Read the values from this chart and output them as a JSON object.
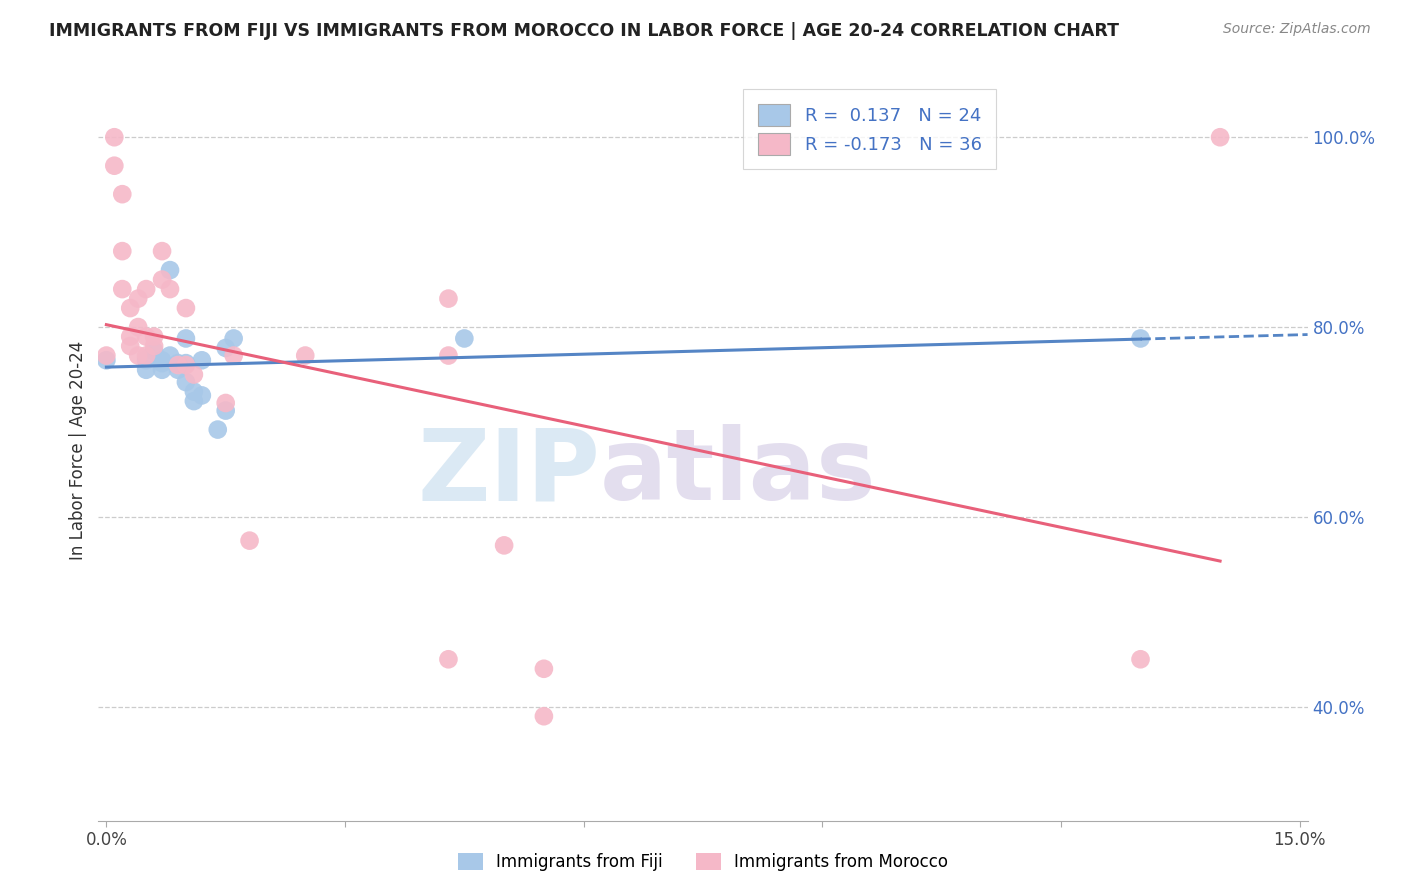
{
  "title": "IMMIGRANTS FROM FIJI VS IMMIGRANTS FROM MOROCCO IN LABOR FORCE | AGE 20-24 CORRELATION CHART",
  "source": "Source: ZipAtlas.com",
  "ylabel": "In Labor Force | Age 20-24",
  "xlim": [
    -0.001,
    0.151
  ],
  "ylim": [
    0.28,
    1.06
  ],
  "xticks": [
    0.0,
    0.03,
    0.06,
    0.09,
    0.12,
    0.15
  ],
  "xticklabels": [
    "0.0%",
    "",
    "",
    "",
    "",
    "15.0%"
  ],
  "yticks_right": [
    0.4,
    0.6,
    0.8,
    1.0
  ],
  "yticklabels_right": [
    "40.0%",
    "60.0%",
    "80.0%",
    "100.0%"
  ],
  "fiji_color": "#a8c8e8",
  "morocco_color": "#f5b8c8",
  "fiji_line_color": "#5585c5",
  "morocco_line_color": "#e8607a",
  "fiji_r": 0.137,
  "fiji_n": 24,
  "morocco_r": -0.173,
  "morocco_n": 36,
  "fiji_x": [
    0.0,
    0.005,
    0.005,
    0.006,
    0.007,
    0.007,
    0.007,
    0.008,
    0.008,
    0.009,
    0.009,
    0.01,
    0.01,
    0.01,
    0.011,
    0.011,
    0.012,
    0.012,
    0.014,
    0.015,
    0.015,
    0.016,
    0.045,
    0.13
  ],
  "fiji_y": [
    0.765,
    0.765,
    0.755,
    0.775,
    0.765,
    0.755,
    0.762,
    0.86,
    0.77,
    0.755,
    0.762,
    0.762,
    0.788,
    0.742,
    0.722,
    0.732,
    0.728,
    0.765,
    0.692,
    0.712,
    0.778,
    0.788,
    0.788,
    0.788
  ],
  "morocco_x": [
    0.0,
    0.001,
    0.001,
    0.002,
    0.002,
    0.002,
    0.003,
    0.003,
    0.003,
    0.004,
    0.004,
    0.004,
    0.005,
    0.005,
    0.005,
    0.006,
    0.006,
    0.007,
    0.007,
    0.008,
    0.009,
    0.01,
    0.01,
    0.011,
    0.015,
    0.016,
    0.018,
    0.025,
    0.043,
    0.043,
    0.043,
    0.05,
    0.055,
    0.055,
    0.13,
    0.14
  ],
  "morocco_y": [
    0.77,
    1.0,
    0.97,
    0.94,
    0.88,
    0.84,
    0.82,
    0.79,
    0.78,
    0.83,
    0.8,
    0.77,
    0.84,
    0.79,
    0.77,
    0.79,
    0.78,
    0.88,
    0.85,
    0.84,
    0.76,
    0.82,
    0.76,
    0.75,
    0.72,
    0.77,
    0.575,
    0.77,
    0.83,
    0.77,
    0.45,
    0.57,
    0.44,
    0.39,
    0.45,
    1.0
  ],
  "watermark_zip_color": "#cce0f0",
  "watermark_atlas_color": "#d8d0e8"
}
